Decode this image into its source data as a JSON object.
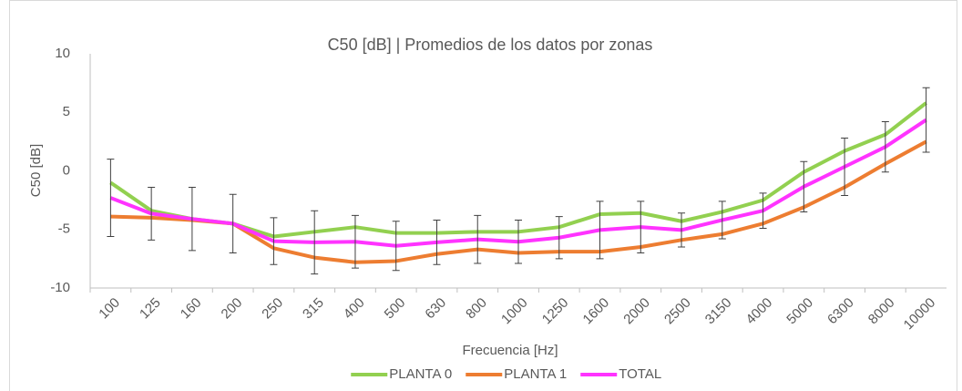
{
  "chart_data": {
    "type": "line",
    "title": "C50 [dB] | Promedios de los datos por zonas",
    "x_label": "Frecuencia [Hz]",
    "y_label": "C50 [dB]",
    "categories": [
      "100",
      "125",
      "160",
      "200",
      "250",
      "315",
      "400",
      "500",
      "630",
      "800",
      "1000",
      "1250",
      "1600",
      "2000",
      "2500",
      "3150",
      "4000",
      "5000",
      "6300",
      "8000",
      "10000"
    ],
    "series": [
      {
        "name": "PLANTA 0",
        "color": "#92d050",
        "values": [
          -1.0,
          -3.4,
          -4.1,
          -4.5,
          -5.6,
          -5.2,
          -4.8,
          -5.3,
          -5.3,
          -5.2,
          -5.2,
          -4.8,
          -3.7,
          -3.6,
          -4.3,
          -3.5,
          -2.5,
          -0.1,
          1.7,
          3.1,
          5.8
        ]
      },
      {
        "name": "PLANTA 1",
        "color": "#ed7d31",
        "values": [
          -3.9,
          -4.0,
          -4.2,
          -4.5,
          -6.6,
          -7.4,
          -7.8,
          -7.7,
          -7.1,
          -6.7,
          -7.0,
          -6.9,
          -6.9,
          -6.5,
          -5.9,
          -5.4,
          -4.5,
          -3.1,
          -1.4,
          0.6,
          2.5
        ]
      },
      {
        "name": "TOTAL",
        "color": "#ff33ff",
        "values": [
          -2.3,
          -3.65,
          -4.1,
          -4.5,
          -6.0,
          -6.1,
          -6.05,
          -6.4,
          -6.1,
          -5.85,
          -6.05,
          -5.7,
          -5.05,
          -4.8,
          -5.05,
          -4.2,
          -3.4,
          -1.35,
          0.35,
          2.05,
          4.35
        ],
        "errors": [
          3.3,
          2.25,
          2.7,
          2.5,
          2.0,
          2.7,
          2.25,
          2.1,
          1.9,
          2.05,
          1.85,
          1.8,
          2.45,
          2.2,
          1.45,
          1.6,
          1.5,
          2.15,
          2.45,
          2.15,
          2.75
        ]
      }
    ],
    "ylim": [
      -10,
      10
    ],
    "yticks": [
      -10,
      -5,
      0,
      5,
      10
    ],
    "grid": false,
    "legend": "bottom"
  }
}
